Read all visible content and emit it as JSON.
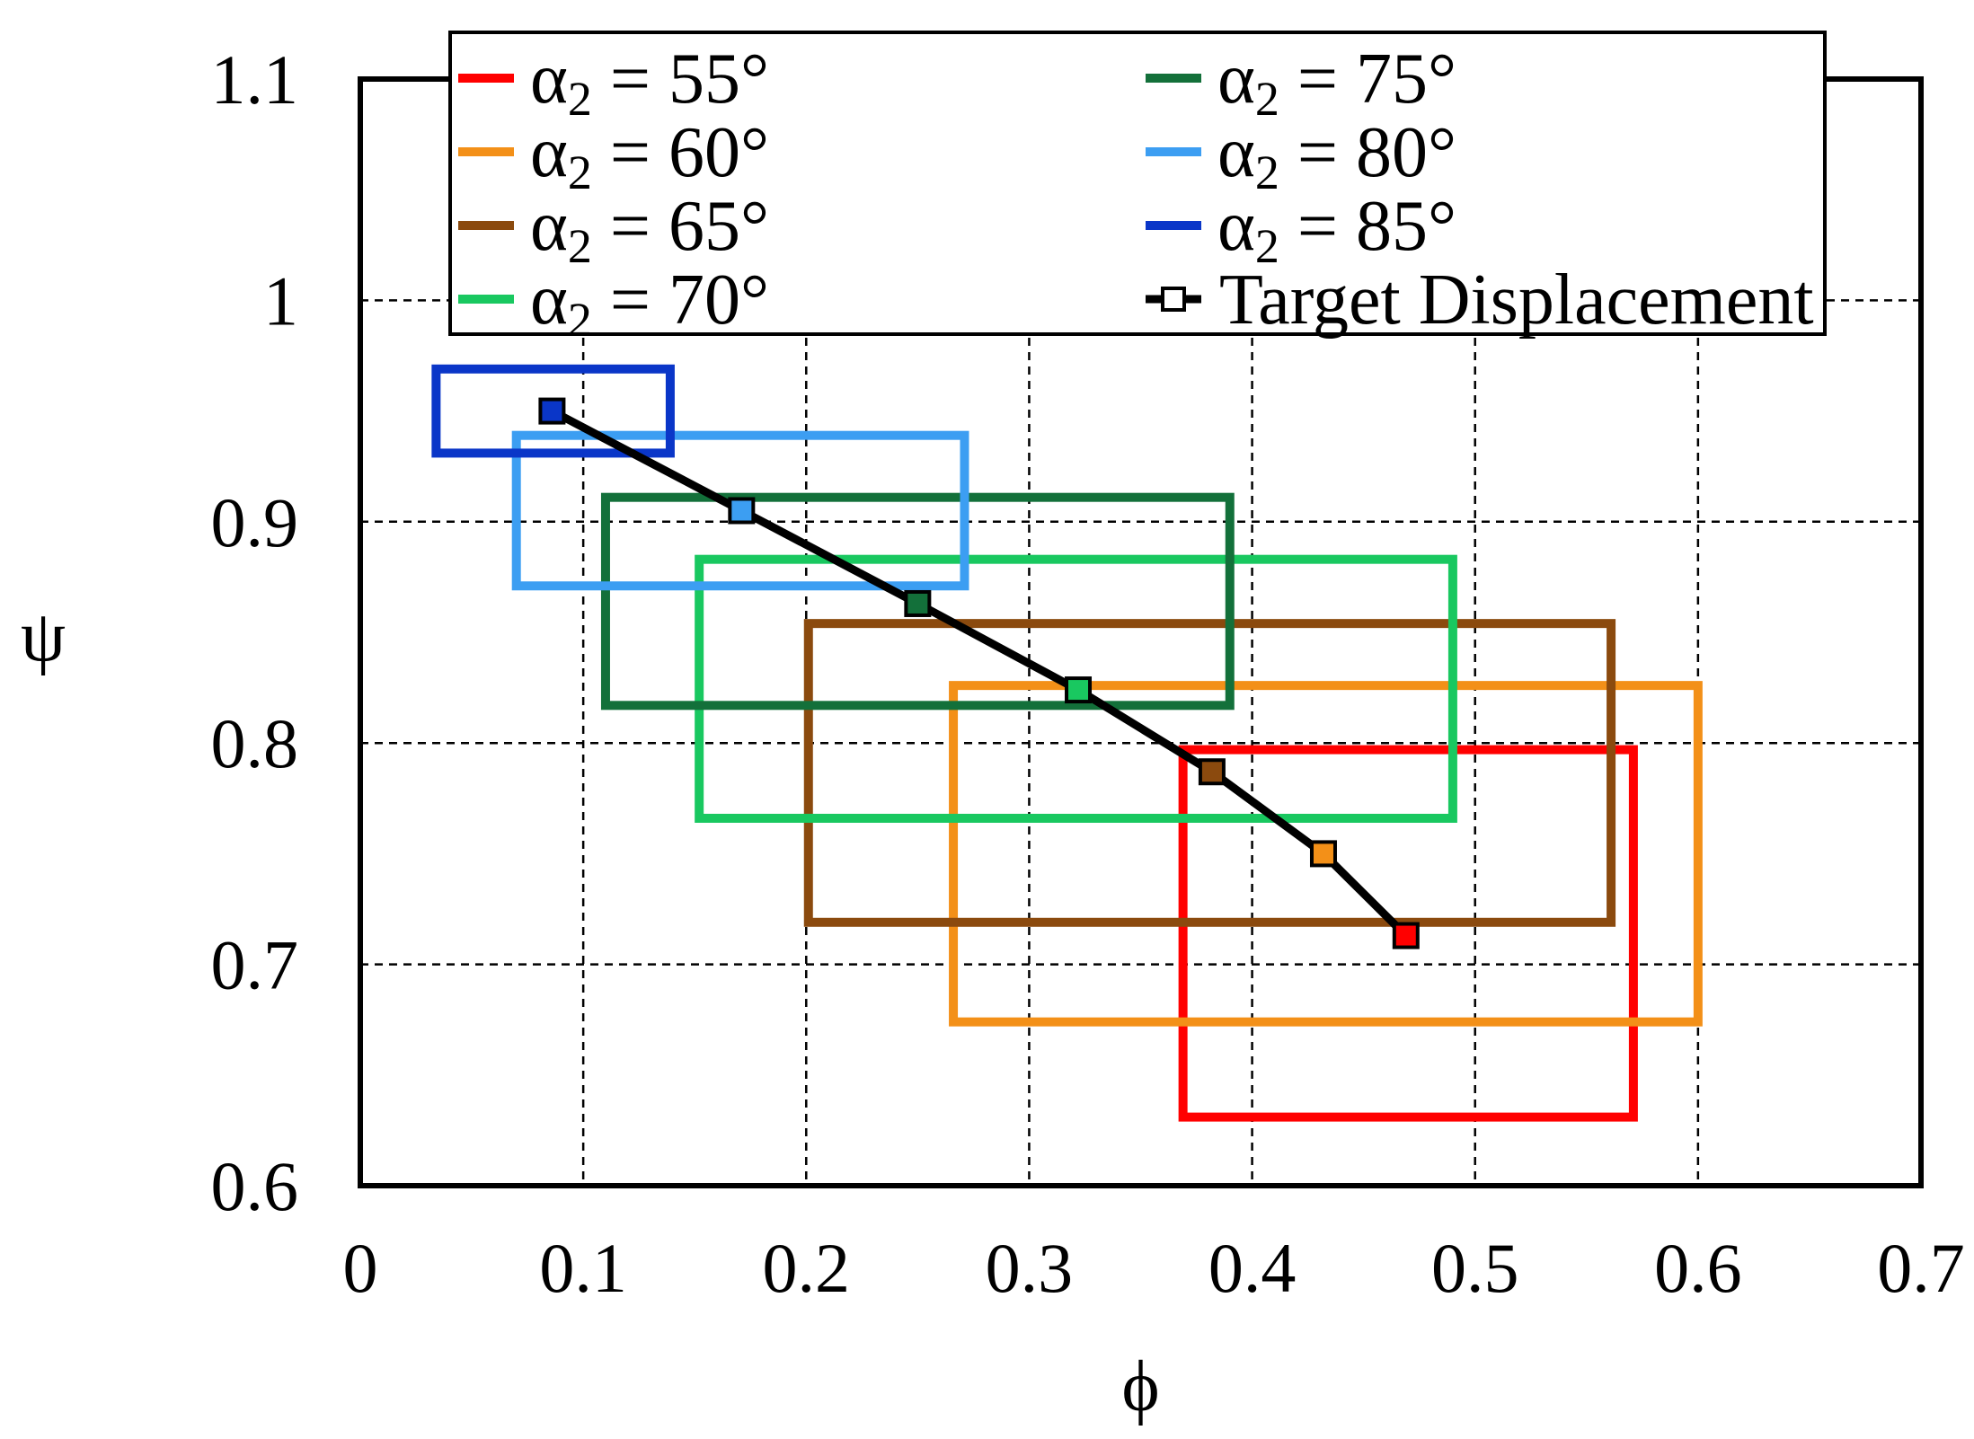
{
  "chart_data": {
    "type": "line",
    "xlabel": "ϕ",
    "ylabel": "ψ",
    "xlim": [
      0,
      0.7
    ],
    "ylim": [
      0.6,
      1.1
    ],
    "x_ticks": [
      0,
      0.1,
      0.2,
      0.3,
      0.4,
      0.5,
      0.6,
      0.7
    ],
    "y_ticks": [
      0.6,
      0.7,
      0.8,
      0.9,
      1.0,
      1.1
    ],
    "x_tick_labels": [
      "0",
      "0.1",
      "0.2",
      "0.3",
      "0.4",
      "0.5",
      "0.6",
      "0.7"
    ],
    "y_tick_labels": [
      "0.6",
      "0.7",
      "0.8",
      "0.9",
      "1",
      "1.1"
    ],
    "grid": true,
    "legend_position": "top",
    "series": [
      {
        "name": "α2 = 55°",
        "alpha": "55°",
        "color": "#ff0000",
        "rect": {
          "x": [
            0.369,
            0.571
          ],
          "y": [
            0.631,
            0.797
          ]
        },
        "target": [
          0.469,
          0.713
        ]
      },
      {
        "name": "α2 = 60°",
        "alpha": "60°",
        "color": "#f39018",
        "rect": {
          "x": [
            0.266,
            0.6
          ],
          "y": [
            0.674,
            0.826
          ]
        },
        "target": [
          0.432,
          0.75
        ]
      },
      {
        "name": "α2 = 65°",
        "alpha": "65°",
        "color": "#8b4a0e",
        "rect": {
          "x": [
            0.201,
            0.561
          ],
          "y": [
            0.719,
            0.854
          ]
        },
        "target": [
          0.382,
          0.787
        ]
      },
      {
        "name": "α2 = 70°",
        "alpha": "70°",
        "color": "#19c860",
        "rect": {
          "x": [
            0.152,
            0.49
          ],
          "y": [
            0.766,
            0.883
          ]
        },
        "target": [
          0.322,
          0.824
        ]
      },
      {
        "name": "α2 = 75°",
        "alpha": "75°",
        "color": "#13703a",
        "rect": {
          "x": [
            0.11,
            0.39
          ],
          "y": [
            0.817,
            0.911
          ]
        },
        "target": [
          0.25,
          0.863
        ]
      },
      {
        "name": "α2 = 80°",
        "alpha": "80°",
        "color": "#3c9ef2",
        "rect": {
          "x": [
            0.07,
            0.271
          ],
          "y": [
            0.871,
            0.939
          ]
        },
        "target": [
          0.171,
          0.905
        ]
      },
      {
        "name": "α2 = 85°",
        "alpha": "85°",
        "color": "#0a36c8",
        "rect": {
          "x": [
            0.034,
            0.139
          ],
          "y": [
            0.931,
            0.969
          ]
        },
        "target": [
          0.086,
          0.95
        ]
      }
    ],
    "target_series": {
      "name": "Target Displacement",
      "color": "#000000"
    }
  },
  "legend": {
    "alpha_prefix": "α",
    "subscript": "2",
    "equals": " = "
  }
}
